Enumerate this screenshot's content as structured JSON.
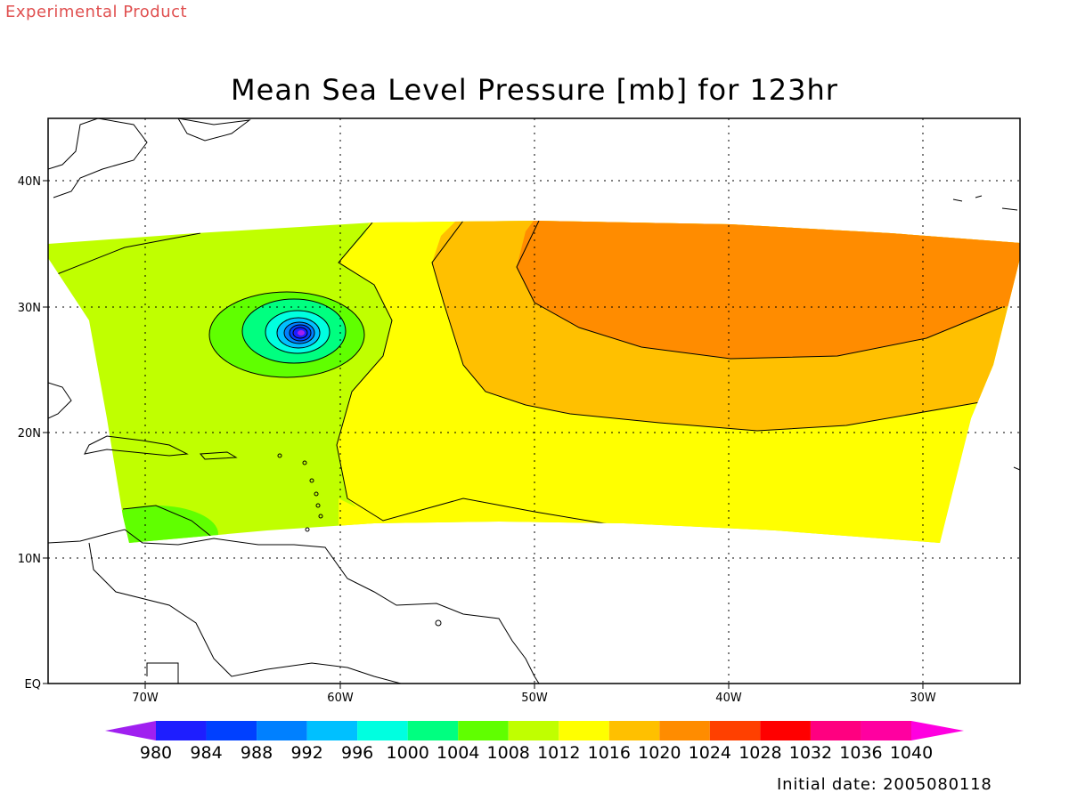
{
  "header": {
    "corner_label": "Experimental Product",
    "title": "Mean Sea Level Pressure [mb] for 123hr"
  },
  "footer": {
    "initial_date": "Initial date: 2005080118"
  },
  "map": {
    "lon_range": [
      -75,
      -25
    ],
    "lat_range": [
      0,
      45
    ],
    "lat_ticks": [
      {
        "value": 40,
        "label": "40N"
      },
      {
        "value": 30,
        "label": "30N"
      },
      {
        "value": 20,
        "label": "20N"
      },
      {
        "value": 10,
        "label": "10N"
      },
      {
        "value": 0,
        "label": "EQ"
      }
    ],
    "lon_ticks": [
      {
        "value": -70,
        "label": "70W"
      },
      {
        "value": -60,
        "label": "60W"
      },
      {
        "value": -50,
        "label": "50W"
      },
      {
        "value": -40,
        "label": "40W"
      },
      {
        "value": -30,
        "label": "30W"
      }
    ],
    "gridlines": "dotted"
  },
  "colorbar": {
    "levels": [
      "980",
      "984",
      "988",
      "992",
      "996",
      "1000",
      "1004",
      "1008",
      "1012",
      "1016",
      "1020",
      "1024",
      "1028",
      "1032",
      "1036",
      "1040"
    ],
    "colors": [
      "#a020f0",
      "#1e1eff",
      "#0040ff",
      "#0080ff",
      "#00c0ff",
      "#00ffe0",
      "#00ff80",
      "#60ff00",
      "#c0ff00",
      "#ffff00",
      "#ffc000",
      "#ff8c00",
      "#ff4000",
      "#ff0000",
      "#ff0080",
      "#ff00a0",
      "#ff00e0"
    ]
  },
  "pressure_fields": {
    "background_1012": "#c0ff00",
    "band_1016": "#ffff00",
    "band_1020": "#ffc000",
    "band_1024": "#ff8c00",
    "low_1008": "#60ff00",
    "low_center_colors": [
      "#00ff80",
      "#00ffe0",
      "#00c0ff",
      "#0080ff",
      "#0040ff",
      "#1e1eff",
      "#a020f0"
    ]
  }
}
